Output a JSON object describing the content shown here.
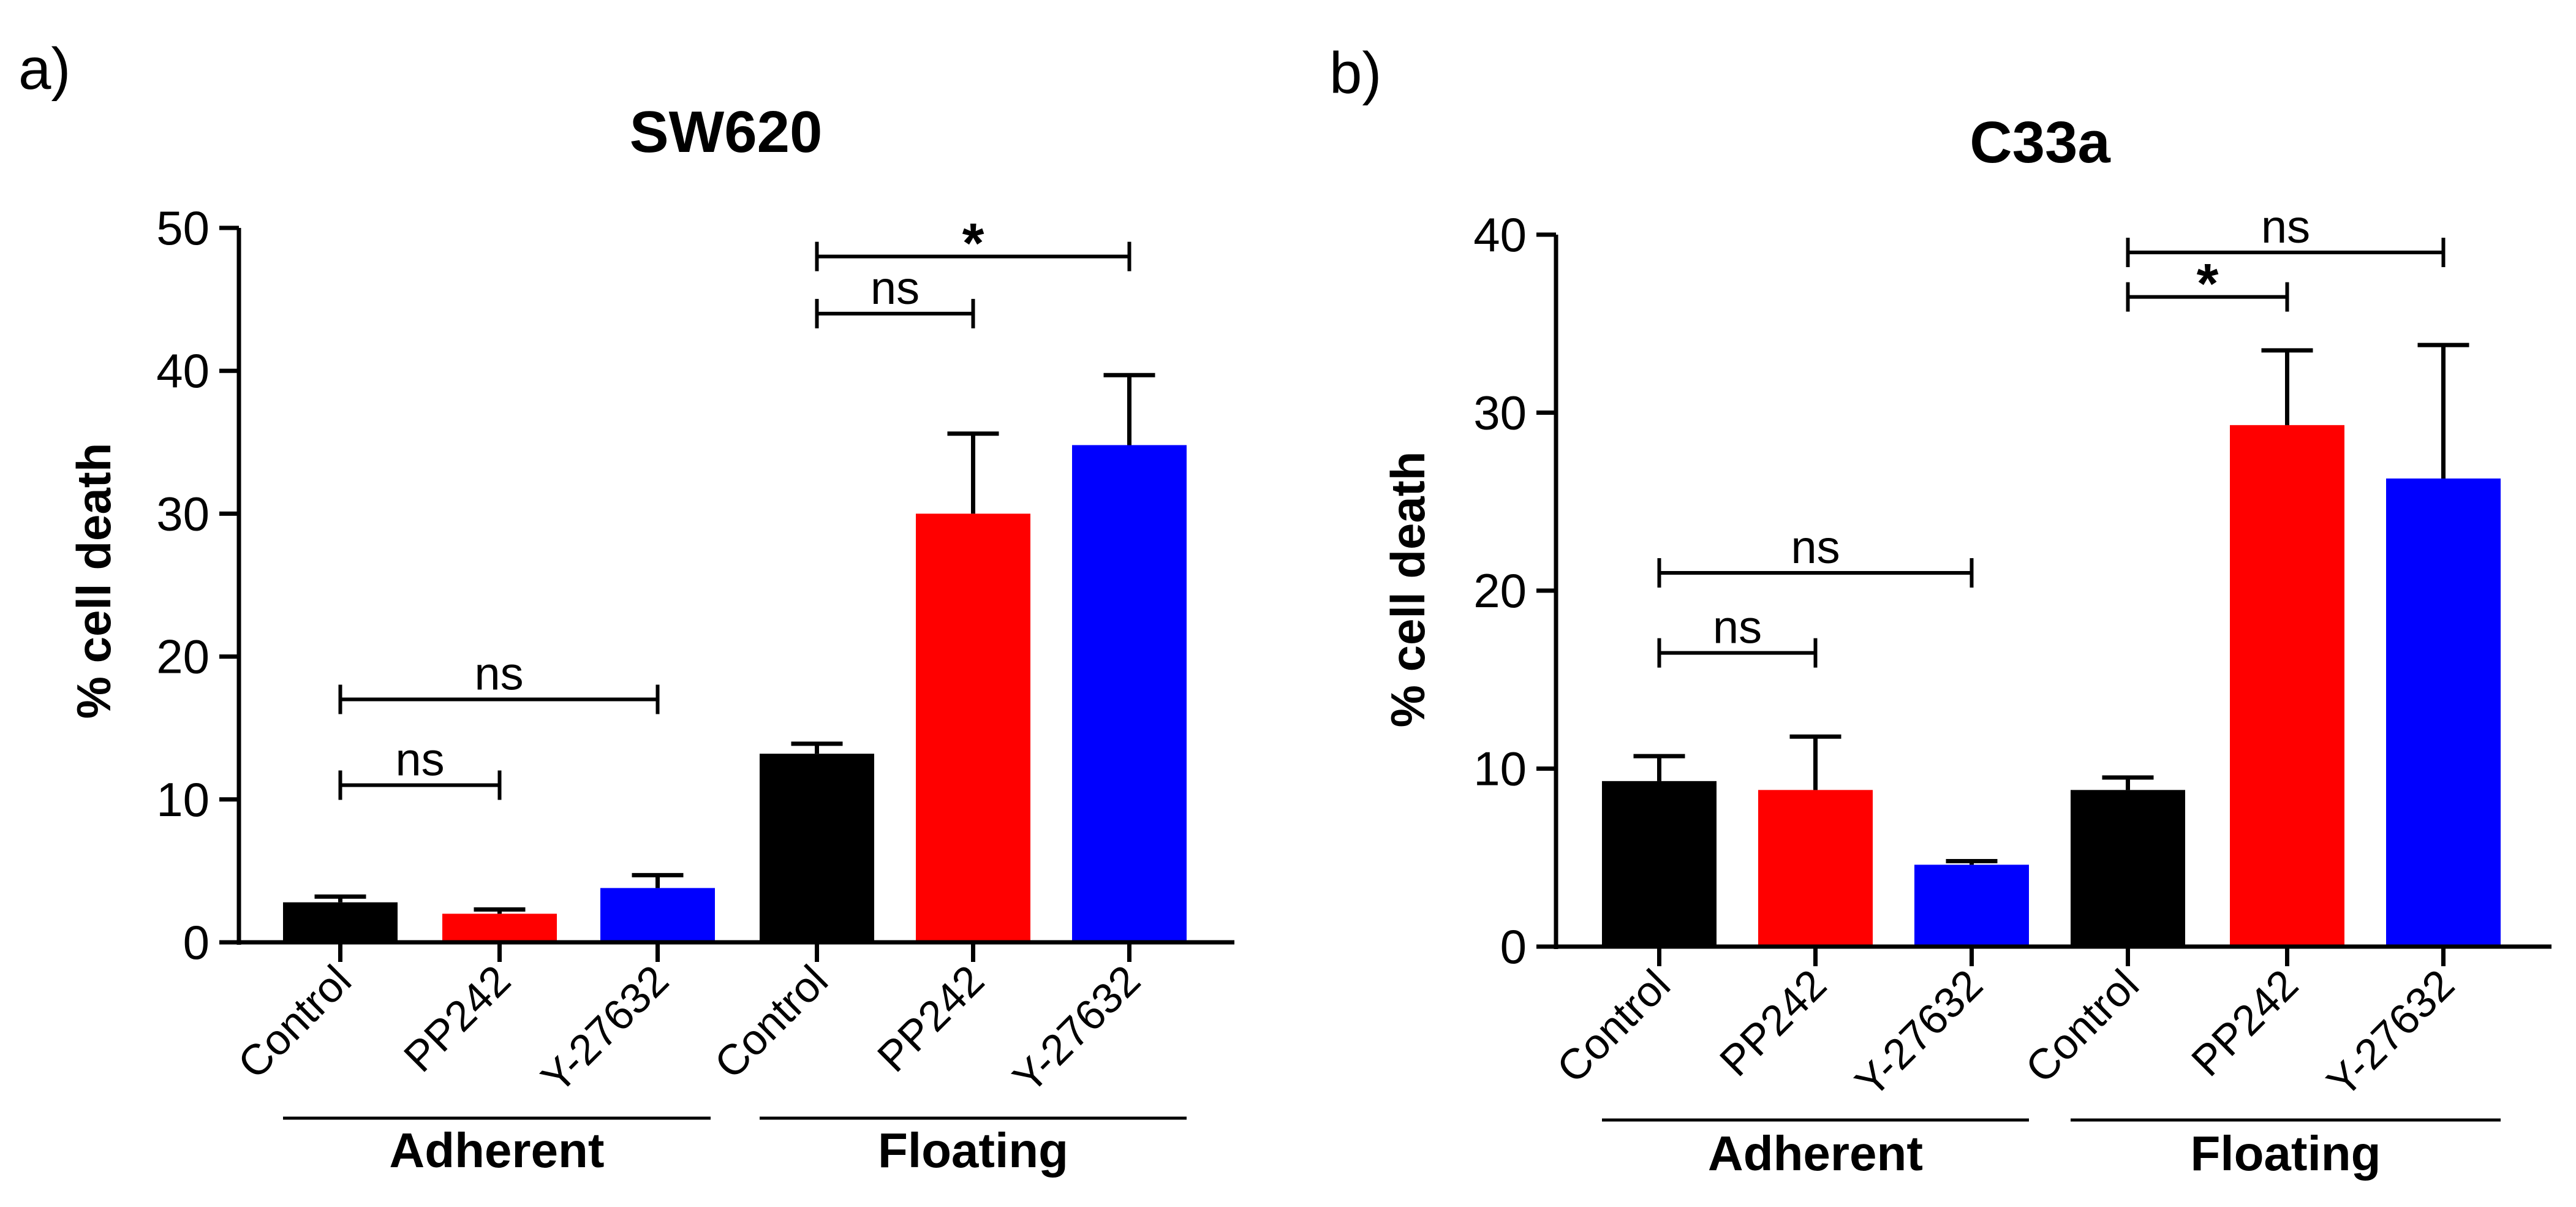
{
  "colors": {
    "black": "#000000",
    "red": "#ff0000",
    "blue": "#0000ff"
  },
  "chart_data": [
    {
      "type": "bar",
      "panel": "a)",
      "title": "SW620",
      "ylabel": "% cell death",
      "xlabel": "",
      "ylim": [
        0,
        50
      ],
      "yticks": [
        "0",
        "10",
        "20",
        "30",
        "40",
        "50"
      ],
      "categories": [
        "Control",
        "PP242",
        "Y-27632",
        "Control",
        "PP242",
        "Y-27632"
      ],
      "values": [
        2.8,
        2.0,
        3.8,
        13.2,
        30.0,
        34.8
      ],
      "errors": [
        0.4,
        0.3,
        0.9,
        0.7,
        5.6,
        4.9
      ],
      "bar_colors": [
        "#000000",
        "#ff0000",
        "#0000ff",
        "#000000",
        "#ff0000",
        "#0000ff"
      ],
      "groups": [
        {
          "label": "Adherent",
          "from": 0,
          "to": 2
        },
        {
          "label": "Floating",
          "from": 3,
          "to": 5
        }
      ],
      "comparisons": [
        {
          "from": 0,
          "to": 1,
          "y": 11.0,
          "label": "ns"
        },
        {
          "from": 0,
          "to": 2,
          "y": 17.0,
          "label": "ns"
        },
        {
          "from": 3,
          "to": 4,
          "y": 44.0,
          "label": "ns"
        },
        {
          "from": 3,
          "to": 5,
          "y": 48.0,
          "label": "*"
        }
      ]
    },
    {
      "type": "bar",
      "panel": "b)",
      "title": "C33a",
      "ylabel": "% cell death",
      "xlabel": "",
      "ylim": [
        0,
        40
      ],
      "yticks": [
        "0",
        "10",
        "20",
        "30",
        "40"
      ],
      "categories": [
        "Control",
        "PP242",
        "Y-27632",
        "Control",
        "PP242",
        "Y-27632"
      ],
      "values": [
        9.3,
        8.8,
        4.6,
        8.8,
        29.3,
        26.3
      ],
      "errors": [
        1.4,
        3.0,
        0.2,
        0.7,
        4.2,
        7.5
      ],
      "bar_colors": [
        "#000000",
        "#ff0000",
        "#0000ff",
        "#000000",
        "#ff0000",
        "#0000ff"
      ],
      "groups": [
        {
          "label": "Adherent",
          "from": 0,
          "to": 2
        },
        {
          "label": "Floating",
          "from": 3,
          "to": 5
        }
      ],
      "comparisons": [
        {
          "from": 0,
          "to": 1,
          "y": 16.5,
          "label": "ns"
        },
        {
          "from": 0,
          "to": 2,
          "y": 21.0,
          "label": "ns"
        },
        {
          "from": 3,
          "to": 4,
          "y": 36.5,
          "label": "*"
        },
        {
          "from": 3,
          "to": 5,
          "y": 39.0,
          "label": "ns"
        }
      ]
    }
  ]
}
